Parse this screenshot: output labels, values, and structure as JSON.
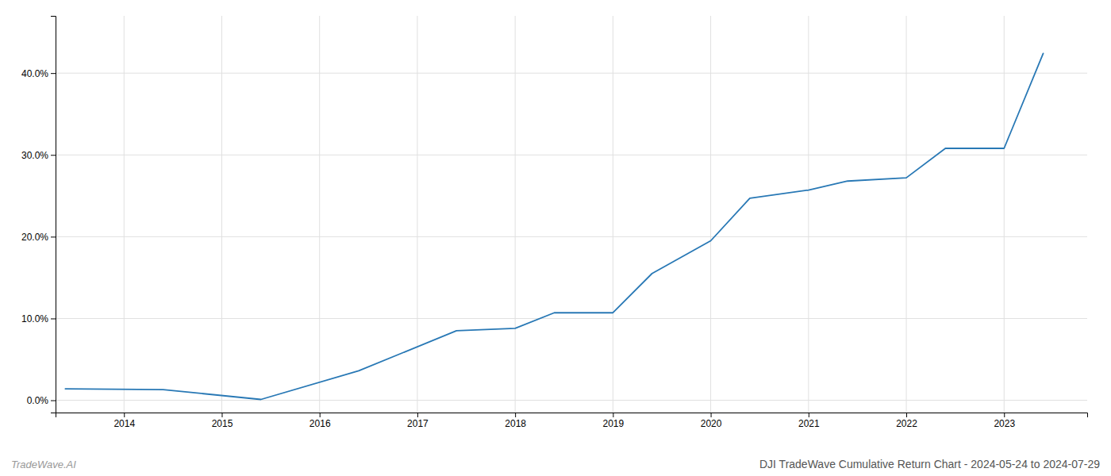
{
  "chart_data": {
    "type": "line",
    "title": "DJI TradeWave Cumulative Return Chart - 2024-05-24 to 2024-07-29",
    "annotations": [
      "TradeWave.AI"
    ],
    "x": [
      2013.4,
      2014.4,
      2015.4,
      2016.4,
      2017.4,
      2018.0,
      2018.4,
      2019.0,
      2019.4,
      2020.0,
      2020.4,
      2021.0,
      2021.4,
      2022.0,
      2022.4,
      2023.0,
      2023.4
    ],
    "values": [
      0.014,
      0.013,
      0.001,
      0.036,
      0.085,
      0.088,
      0.107,
      0.107,
      0.155,
      0.195,
      0.247,
      0.257,
      0.268,
      0.272,
      0.308,
      0.308,
      0.424
    ],
    "color": "#2878b5",
    "xlim": [
      2013.3,
      2023.85
    ],
    "ylim": [
      -0.015,
      0.47
    ],
    "xticks": [
      2014,
      2015,
      2016,
      2017,
      2018,
      2019,
      2020,
      2021,
      2022,
      2023
    ],
    "yticks": [
      {
        "value": 0.0,
        "label": "0.0%"
      },
      {
        "value": 0.1,
        "label": "10.0%"
      },
      {
        "value": 0.2,
        "label": "20.0%"
      },
      {
        "value": 0.3,
        "label": "30.0%"
      },
      {
        "value": 0.4,
        "label": "40.0%"
      }
    ],
    "grid": true
  }
}
